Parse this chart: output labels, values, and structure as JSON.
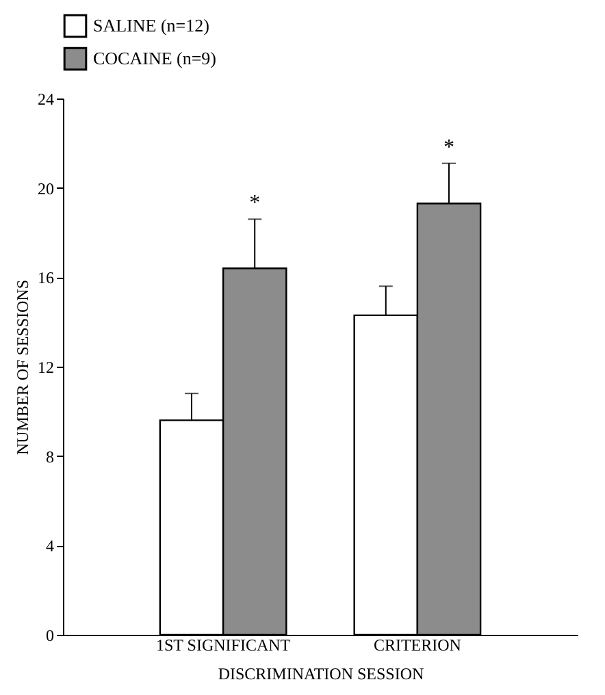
{
  "chart_data": {
    "type": "bar",
    "categories": [
      "1ST SIGNIFICANT",
      "CRITERION"
    ],
    "xlabel": "DISCRIMINATION SESSION",
    "ylabel": "NUMBER OF SESSIONS",
    "series": [
      {
        "name": "SALINE (n=12)",
        "color": "#ffffff",
        "values": [
          9.6,
          14.3
        ],
        "errors": [
          [
            9.6,
            10.8
          ],
          [
            14.3,
            15.6
          ]
        ]
      },
      {
        "name": "COCAINE (n=9)",
        "color": "#8c8c8c",
        "values": [
          16.4,
          19.3
        ],
        "errors": [
          [
            16.4,
            18.6
          ],
          [
            19.3,
            21.1
          ]
        ]
      }
    ],
    "ylim": [
      0,
      24
    ],
    "yticks": [
      0,
      4,
      8,
      12,
      16,
      20,
      24
    ],
    "annotations": [
      "*",
      "*"
    ],
    "legend": "top",
    "grid": false
  }
}
